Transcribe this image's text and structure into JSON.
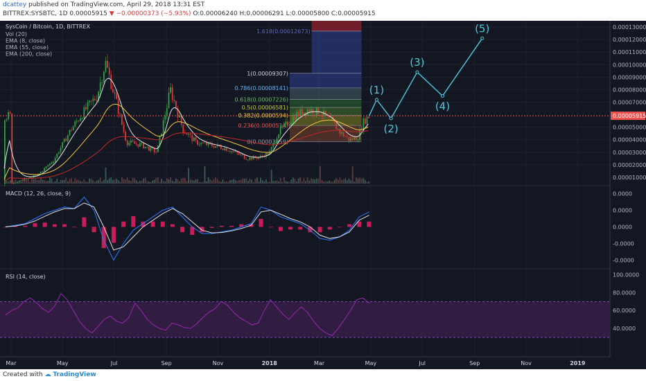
{
  "header": {
    "user": "dcattey",
    "published": "published on TradingView.com, April 29, 2018 13:31 EST",
    "symbol": "BITTREX:SYSBTC, 1D",
    "last": "0.00005915",
    "change": "−0.00000373 (−5.93%)",
    "ohlc": "O:0.00006240 H:0.00006291 L:0.00005800 C:0.00005915"
  },
  "footer": {
    "created_with": "Created with",
    "brand": "TradingView"
  },
  "colors": {
    "bg": "#131722",
    "up": "#26a69a",
    "down": "#ef5350",
    "wave": "#50c8dc",
    "macd": "#2979ff",
    "signal": "#e0e0e0",
    "hist": "#e91e63",
    "rsi": "#9c27b0"
  },
  "chart_data": [
    {
      "type": "candlestick",
      "title": "SysCoin / Bitcoin, 1D, BITTREX",
      "legend": [
        "Vol (20)",
        "EMA (8, close)",
        "EMA (55, close)",
        "EMA (200, close)"
      ],
      "legend_placement": "top-left",
      "x_ticks": [
        "Mar",
        "May",
        "Jul",
        "Sep",
        "Nov",
        "2018",
        "Mar",
        "May",
        "Jul",
        "Sep",
        "Nov",
        "2019"
      ],
      "y_ticks": [
        "0.00013000",
        "0.00012000",
        "0.00011000",
        "0.00010000",
        "0.00009000",
        "0.00008000",
        "0.00007000",
        "0.00005000",
        "0.00004000",
        "0.00003000",
        "0.00002000",
        "0.00001000"
      ],
      "ylim": [
        5e-06,
        0.000135
      ],
      "last_price": 5.915e-05,
      "last_price_label": "0.00005915",
      "price_path": [
        [
          "2017-03-01",
          5e-06
        ],
        [
          "2017-04-01",
          1.2e-05
        ],
        [
          "2017-04-20",
          2.4e-05
        ],
        [
          "2017-05-10",
          4.8e-05
        ],
        [
          "2017-05-25",
          6.2e-05
        ],
        [
          "2017-06-10",
          7.5e-05
        ],
        [
          "2017-06-20",
          0.000102
        ],
        [
          "2017-07-01",
          7.5e-05
        ],
        [
          "2017-07-15",
          3.8e-05
        ],
        [
          "2017-08-01",
          3.6e-05
        ],
        [
          "2017-08-20",
          3e-05
        ],
        [
          "2017-09-05",
          8e-05
        ],
        [
          "2017-09-20",
          4.8e-05
        ],
        [
          "2017-10-05",
          3.8e-05
        ],
        [
          "2017-10-20",
          3.6e-05
        ],
        [
          "2017-11-05",
          3.4e-05
        ],
        [
          "2017-11-20",
          3e-05
        ],
        [
          "2017-12-05",
          2.5e-05
        ],
        [
          "2017-12-20",
          2.6e-05
        ],
        [
          "2018-01-01",
          3e-05
        ],
        [
          "2018-01-10",
          4.5e-05
        ],
        [
          "2018-01-20",
          5.2e-05
        ],
        [
          "2018-02-01",
          6e-05
        ],
        [
          "2018-02-15",
          6.4e-05
        ],
        [
          "2018-03-01",
          6.2e-05
        ],
        [
          "2018-03-15",
          5.5e-05
        ],
        [
          "2018-03-25",
          4.6e-05
        ],
        [
          "2018-04-05",
          4e-05
        ],
        [
          "2018-04-15",
          4.2e-05
        ],
        [
          "2018-04-22",
          5.5e-05
        ],
        [
          "2018-04-29",
          5.915e-05
        ]
      ],
      "fibonacci": [
        {
          "level": "1.618",
          "value": 0.00012673,
          "label": "1.618(0.00012673)"
        },
        {
          "level": "1",
          "value": 9.307e-05,
          "label": "1(0.00009307)"
        },
        {
          "level": "0.786",
          "value": 8.141e-05,
          "label": "0.786(0.00008141)"
        },
        {
          "level": "0.618",
          "value": 7.226e-05,
          "label": "0.618(0.00007226)"
        },
        {
          "level": "0.5",
          "value": 6.581e-05,
          "label": "0.5(0.00006581)"
        },
        {
          "level": "0.382",
          "value": 5.94e-05,
          "label": "0.382(0.0000594)"
        },
        {
          "level": "0.236",
          "value": 5.14e-05,
          "label": "0.236(0.0000514)"
        },
        {
          "level": "0",
          "value": 3.859e-05,
          "label": "0(0.00003859)"
        }
      ],
      "elliott_waves": [
        {
          "label": "",
          "date": "2018-04-29",
          "value": 5.9e-05
        },
        {
          "label": "(1)",
          "date": "2018-05-08",
          "value": 7.2e-05
        },
        {
          "label": "(2)",
          "date": "2018-05-25",
          "value": 5.7e-05
        },
        {
          "label": "(3)",
          "date": "2018-06-25",
          "value": 9.4e-05
        },
        {
          "label": "(4)",
          "date": "2018-07-25",
          "value": 7.5e-05
        },
        {
          "label": "(5)",
          "date": "2018-09-10",
          "value": 0.000121
        }
      ]
    },
    {
      "type": "line",
      "title": "MACD (12, 26, close, 9)",
      "y_ticks": [
        "0.0000",
        "0.0000",
        "0.0000",
        "-0.0000",
        "-0.0000"
      ],
      "ylim": [
        -1.2,
        1.2
      ],
      "note": "values normalized; axis labels print 0.0000",
      "series": [
        {
          "values": [
            0,
            0.05,
            0.1,
            0.25,
            0.4,
            0.5,
            0.6,
            0.55,
            0.9,
            0.5,
            -0.4,
            -1.0,
            -0.5,
            -0.1,
            0.1,
            0.3,
            0.5,
            0.6,
            0.3,
            0.0,
            -0.2,
            -0.2,
            -0.15,
            -0.1,
            0.0,
            0.1,
            0.6,
            0.5,
            0.3,
            0.2,
            0.1,
            -0.1,
            -0.35,
            -0.4,
            -0.3,
            -0.1,
            0.3,
            0.45
          ]
        },
        {
          "values": [
            0,
            0.03,
            0.08,
            0.18,
            0.32,
            0.45,
            0.55,
            0.55,
            0.72,
            0.6,
            0.0,
            -0.7,
            -0.6,
            -0.3,
            0.0,
            0.2,
            0.4,
            0.55,
            0.4,
            0.15,
            -0.1,
            -0.18,
            -0.17,
            -0.12,
            -0.05,
            0.05,
            0.45,
            0.5,
            0.38,
            0.25,
            0.15,
            0.0,
            -0.25,
            -0.35,
            -0.3,
            -0.15,
            0.2,
            0.35
          ]
        }
      ]
    },
    {
      "type": "line",
      "title": "RSI (14, close)",
      "y_ticks": [
        "100.0000",
        "80.0000",
        "60.0000",
        "40.0000"
      ],
      "ylim": [
        20,
        105
      ],
      "bands": [
        30,
        70
      ],
      "series": [
        {
          "values": [
            55,
            60,
            63,
            70,
            74,
            69,
            62,
            58,
            65,
            79,
            72,
            60,
            48,
            40,
            35,
            42,
            50,
            54,
            48,
            46,
            52,
            68,
            60,
            50,
            44,
            40,
            38,
            46,
            44,
            41,
            40,
            45,
            52,
            58,
            62,
            70,
            66,
            58,
            52,
            48,
            44,
            46,
            60,
            72,
            64,
            56,
            50,
            58,
            64,
            58,
            48,
            40,
            35,
            32,
            40,
            50,
            60,
            72,
            74,
            68
          ]
        }
      ]
    }
  ]
}
